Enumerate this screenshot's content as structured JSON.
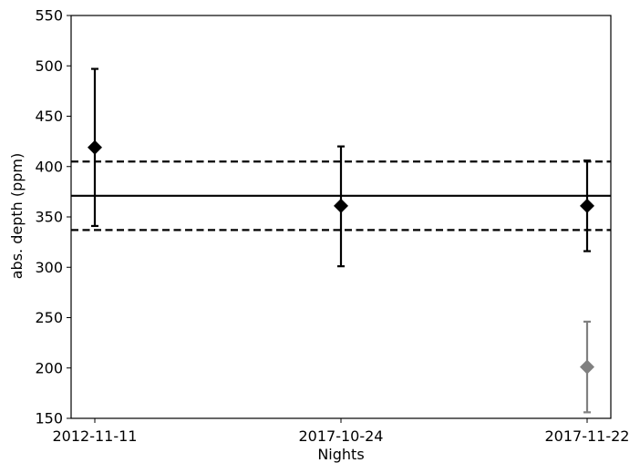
{
  "chart_data": {
    "type": "scatter",
    "title": "",
    "xlabel": "Nights",
    "ylabel": "abs. depth (ppm)",
    "ylim": [
      150,
      550
    ],
    "yticks": [
      150,
      200,
      250,
      300,
      350,
      400,
      450,
      500,
      550
    ],
    "categories": [
      "2012-11-11",
      "2017-10-24",
      "2017-11-22"
    ],
    "grid": false,
    "series": [
      {
        "color": "#000000",
        "marker": "diamond",
        "points": [
          {
            "x": "2012-11-11",
            "y": 419,
            "yerr_low": 341,
            "yerr_high": 497
          },
          {
            "x": "2017-10-24",
            "y": 361,
            "yerr_low": 301,
            "yerr_high": 420
          },
          {
            "x": "2017-11-22",
            "y": 361,
            "yerr_low": 316,
            "yerr_high": 406
          }
        ]
      },
      {
        "color": "#808080",
        "marker": "diamond",
        "points": [
          {
            "x": "2017-11-22",
            "y": 201,
            "yerr_low": 156,
            "yerr_high": 246
          }
        ]
      }
    ],
    "reference_lines": [
      {
        "y": 371,
        "style": "solid",
        "color": "#000000"
      },
      {
        "y": 405,
        "style": "dashed",
        "color": "#000000"
      },
      {
        "y": 337,
        "style": "dashed",
        "color": "#000000"
      }
    ]
  }
}
